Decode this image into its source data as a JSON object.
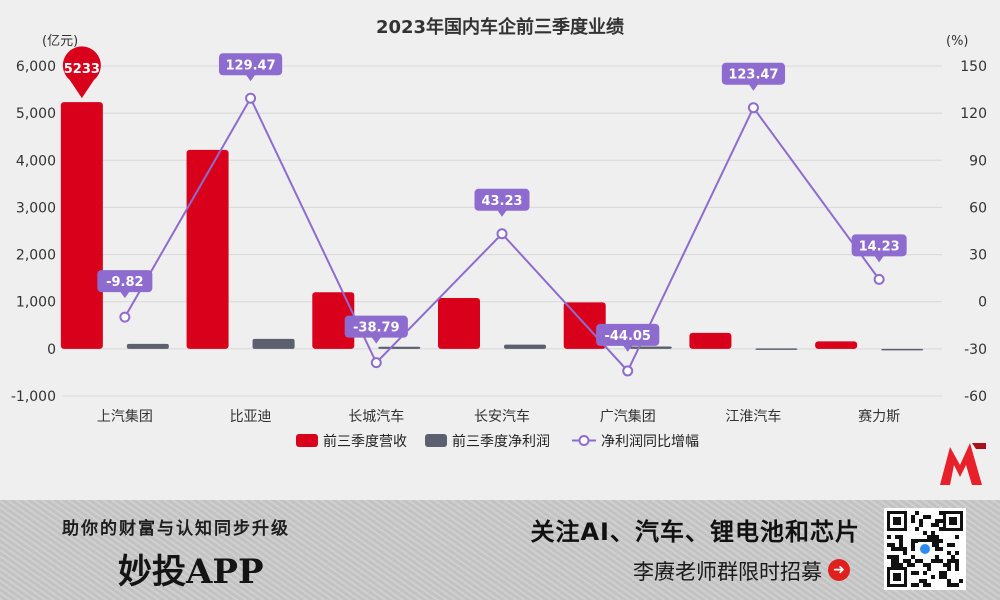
{
  "chart_data": {
    "type": "bar",
    "title": "2023年国内车企前三季度业绩",
    "y_left_unit": "(亿元)",
    "y_right_unit": "(%)",
    "categories": [
      "上汽集团",
      "比亚迪",
      "长城汽车",
      "长安汽车",
      "广汽集团",
      "江淮汽车",
      "赛力斯"
    ],
    "series": [
      {
        "name": "前三季度营收",
        "type": "bar",
        "axis": "left",
        "color": "#d9001b",
        "values": [
          5233,
          4222,
          1200,
          1080,
          985,
          340,
          160
        ]
      },
      {
        "name": "前三季度净利润",
        "type": "bar",
        "axis": "left",
        "color": "#5b5f6e",
        "values": [
          105,
          213,
          46,
          91,
          50,
          10,
          -23
        ]
      },
      {
        "name": "净利润同比增幅",
        "type": "line",
        "axis": "right",
        "color": "#8e6ccf",
        "values": [
          -9.82,
          129.47,
          -38.79,
          43.23,
          -44.05,
          123.47,
          14.23
        ],
        "labels": [
          "-9.82",
          "129.47",
          "-38.79",
          "43.23",
          "-44.05",
          "123.47",
          "14.23"
        ]
      }
    ],
    "y_left_ticks": [
      "6,000",
      "5,000",
      "4,000",
      "3,000",
      "2,000",
      "1,000",
      "0",
      "-1,000"
    ],
    "y_right_ticks": [
      "150",
      "120",
      "90",
      "60",
      "30",
      "0",
      "-30",
      "-60"
    ],
    "ylim_left": [
      -1000,
      6000
    ],
    "ylim_right": [
      -60,
      150
    ],
    "callout": {
      "category": "上汽集团",
      "text": "5233",
      "color": "#d9001b"
    },
    "grid": true,
    "legend_position": "bottom"
  },
  "banner": {
    "slogan": "助你的财富与认知同步升级",
    "app_name": "妙投APP",
    "follow_text": "关注AI、汽车、锂电池和芯片",
    "recruit_text": "李赓老师群限时招募",
    "arrow_icon": "➜"
  },
  "logo": "m-logo-icon",
  "qr": "qr-code-icon"
}
